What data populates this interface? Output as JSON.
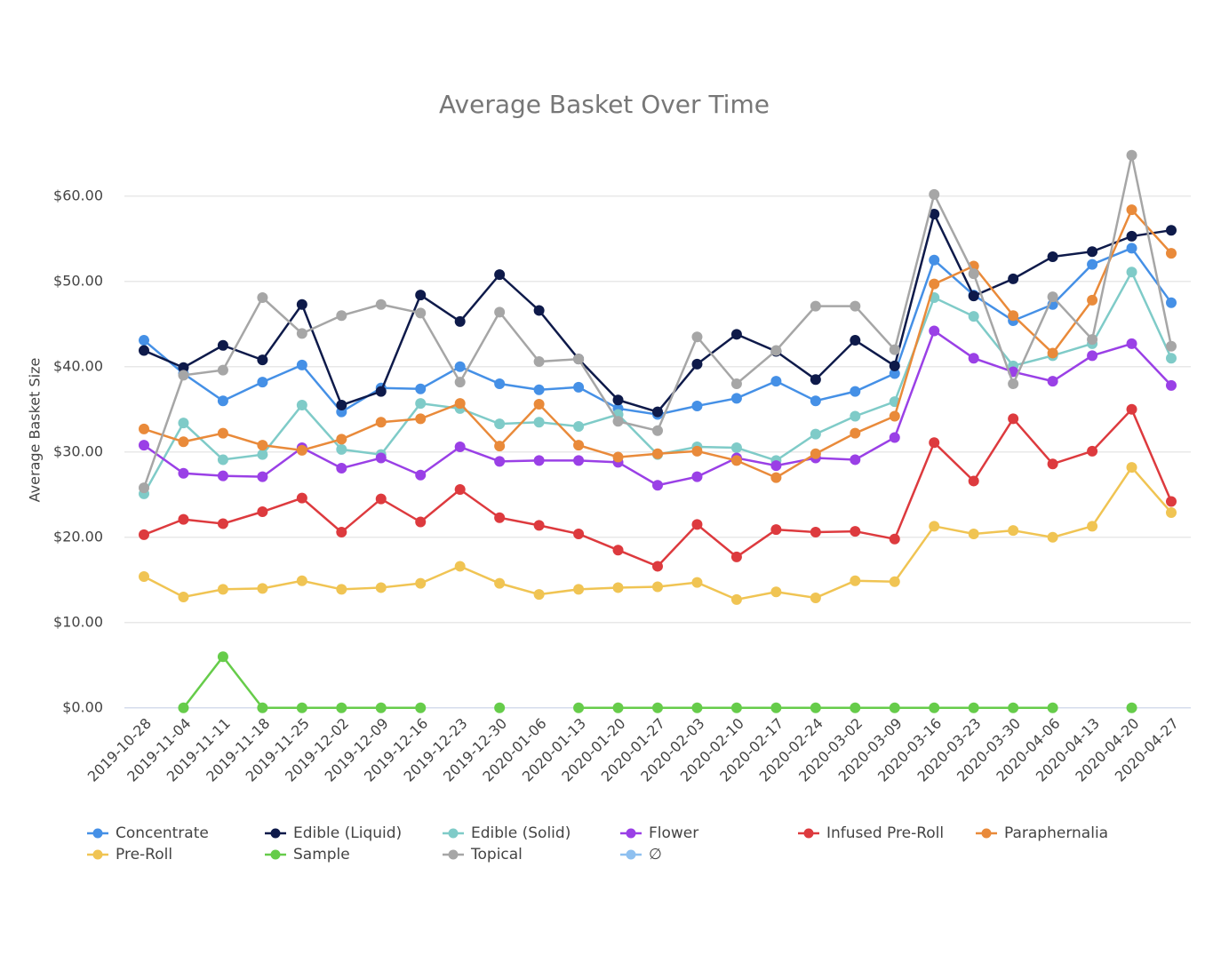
{
  "chart_data": {
    "type": "line",
    "title": "Average Basket Over Time",
    "y_label": "Average Basket Size",
    "categories": [
      "2019-10-28",
      "2019-11-04",
      "2019-11-11",
      "2019-11-18",
      "2019-11-25",
      "2019-12-02",
      "2019-12-09",
      "2019-12-16",
      "2019-12-23",
      "2019-12-30",
      "2020-01-06",
      "2020-01-13",
      "2020-01-20",
      "2020-01-27",
      "2020-02-03",
      "2020-02-10",
      "2020-02-17",
      "2020-02-24",
      "2020-03-02",
      "2020-03-09",
      "2020-03-16",
      "2020-03-23",
      "2020-03-30",
      "2020-04-06",
      "2020-04-13",
      "2020-04-20",
      "2020-04-27"
    ],
    "ylim": [
      -2,
      68
    ],
    "yticks": [
      {
        "value": 0,
        "label": "$0.00"
      },
      {
        "value": 10,
        "label": "$10.00"
      },
      {
        "value": 20,
        "label": "$20.00"
      },
      {
        "value": 30,
        "label": "$30.00"
      },
      {
        "value": 40,
        "label": "$40.00"
      },
      {
        "value": 50,
        "label": "$50.00"
      },
      {
        "value": 60,
        "label": "$60.00"
      }
    ],
    "grid": true,
    "legend": "bottom",
    "series": [
      {
        "name": "Concentrate",
        "color": "#4590e6",
        "values": [
          43.1,
          39.2,
          36.0,
          38.2,
          40.2,
          34.7,
          37.5,
          37.4,
          40.0,
          38.0,
          37.3,
          37.6,
          35.1,
          34.4,
          35.4,
          36.3,
          38.3,
          36.0,
          37.1,
          39.2,
          52.5,
          48.4,
          45.4,
          47.3,
          52.0,
          53.9,
          47.5
        ]
      },
      {
        "name": "Edible (Liquid)",
        "color": "#0e1a4a",
        "values": [
          41.9,
          39.9,
          42.5,
          40.8,
          47.3,
          35.5,
          37.1,
          48.4,
          45.3,
          50.8,
          46.6,
          40.9,
          36.1,
          34.7,
          40.3,
          43.8,
          41.8,
          38.5,
          43.1,
          40.1,
          57.9,
          48.3,
          50.3,
          52.9,
          53.5,
          55.3,
          56.0
        ]
      },
      {
        "name": "Edible (Solid)",
        "color": "#7fcbc8",
        "values": [
          25.1,
          33.4,
          29.1,
          29.7,
          35.5,
          30.3,
          29.7,
          35.7,
          35.1,
          33.3,
          33.5,
          33.0,
          34.4,
          29.7,
          30.6,
          30.5,
          29.0,
          32.1,
          34.2,
          35.9,
          48.1,
          45.9,
          40.1,
          41.3,
          42.7,
          51.1,
          41.0
        ]
      },
      {
        "name": "Flower",
        "color": "#9a40e6",
        "values": [
          30.8,
          27.5,
          27.2,
          27.1,
          30.5,
          28.1,
          29.3,
          27.3,
          30.6,
          28.9,
          29.0,
          29.0,
          28.8,
          26.1,
          27.1,
          29.3,
          28.4,
          29.3,
          29.1,
          31.7,
          44.2,
          41.0,
          39.4,
          38.3,
          41.3,
          42.7,
          37.8
        ]
      },
      {
        "name": "Infused Pre-Roll",
        "color": "#dd3a3e",
        "values": [
          20.3,
          22.1,
          21.6,
          23.0,
          24.6,
          20.6,
          24.5,
          21.8,
          25.6,
          22.3,
          21.4,
          20.4,
          18.5,
          16.6,
          21.5,
          17.7,
          20.9,
          20.6,
          20.7,
          19.8,
          31.1,
          26.6,
          33.9,
          28.6,
          30.1,
          35.0,
          24.2
        ]
      },
      {
        "name": "Paraphernalia",
        "color": "#e98a3a",
        "values": [
          32.7,
          31.2,
          32.2,
          30.8,
          30.2,
          31.5,
          33.5,
          33.9,
          35.7,
          30.7,
          35.6,
          30.8,
          29.4,
          29.8,
          30.1,
          29.0,
          27.0,
          29.8,
          32.2,
          34.2,
          49.7,
          51.8,
          46.0,
          41.6,
          47.8,
          58.4,
          53.3
        ]
      },
      {
        "name": "Pre-Roll",
        "color": "#f0c453",
        "values": [
          15.4,
          13.0,
          13.9,
          14.0,
          14.9,
          13.9,
          14.1,
          14.6,
          16.6,
          14.6,
          13.3,
          13.9,
          14.1,
          14.2,
          14.7,
          12.7,
          13.6,
          12.9,
          14.9,
          14.8,
          21.3,
          20.4,
          20.8,
          20.0,
          21.3,
          28.2,
          22.9
        ]
      },
      {
        "name": "Sample",
        "color": "#66cc4a",
        "values": [
          null,
          0,
          6.0,
          0,
          0,
          0,
          0,
          0,
          null,
          0,
          null,
          0,
          0,
          0,
          0,
          0,
          0,
          0,
          0,
          0,
          0,
          0,
          0,
          0,
          null,
          0,
          null
        ]
      },
      {
        "name": "Topical",
        "color": "#a6a6a6",
        "values": [
          25.8,
          39.0,
          39.6,
          48.1,
          43.9,
          46.0,
          47.3,
          46.3,
          38.2,
          46.4,
          40.6,
          40.9,
          33.6,
          32.5,
          43.5,
          38.0,
          41.9,
          47.1,
          47.1,
          42.0,
          60.2,
          50.9,
          38.0,
          48.2,
          43.2,
          64.8,
          42.4
        ]
      },
      {
        "name": "∅",
        "color": "#8ec0f0",
        "values": [
          null,
          null,
          null,
          null,
          null,
          null,
          null,
          null,
          null,
          null,
          null,
          null,
          null,
          null,
          null,
          null,
          null,
          null,
          null,
          null,
          null,
          null,
          null,
          null,
          null,
          null,
          null
        ]
      }
    ]
  }
}
